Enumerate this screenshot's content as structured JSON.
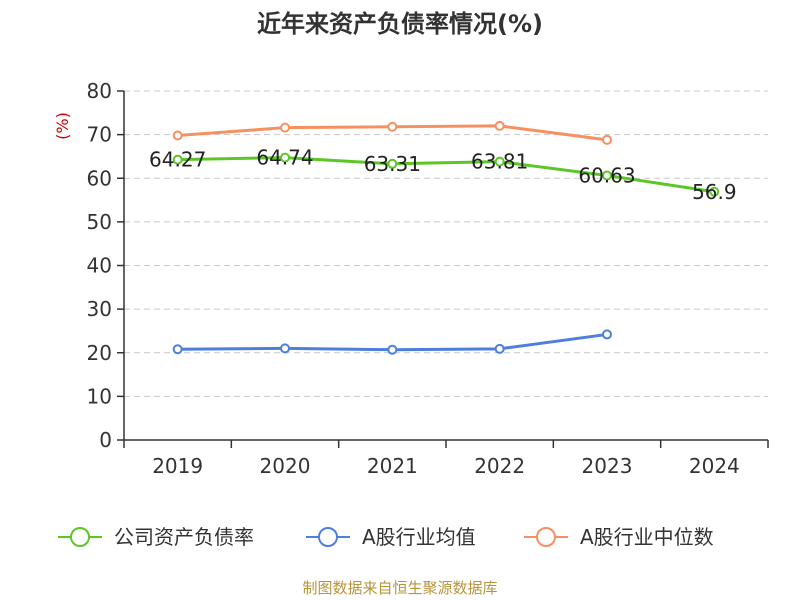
{
  "chart_data": {
    "type": "line",
    "title": "近年来资产负债率情况(%)",
    "ylabel": "(%)",
    "xlabel": "",
    "categories": [
      "2019",
      "2020",
      "2021",
      "2022",
      "2023",
      "2024"
    ],
    "ylim": [
      0,
      80
    ],
    "yticks": [
      0,
      10,
      20,
      30,
      40,
      50,
      60,
      70,
      80
    ],
    "grid": true,
    "legend_position": "bottom",
    "series": [
      {
        "name": "公司资产负债率",
        "color": "#5cc626",
        "values": [
          64.27,
          64.74,
          63.31,
          63.81,
          60.63,
          56.9
        ],
        "labels": [
          "64.27",
          "64.74",
          "63.31",
          "63.81",
          "60.63",
          "56.9"
        ]
      },
      {
        "name": "A股行业均值",
        "color": "#4e7fdc",
        "values": [
          20.8,
          21.0,
          20.7,
          20.9,
          24.2,
          null
        ]
      },
      {
        "name": "A股行业中位数",
        "color": "#f79060",
        "values": [
          69.8,
          71.6,
          71.8,
          72.0,
          68.8,
          null
        ]
      }
    ]
  },
  "ylabel_color": "#cc0000",
  "source": {
    "text": "制图数据来自恒生聚源数据库",
    "color": "#b8953a"
  }
}
